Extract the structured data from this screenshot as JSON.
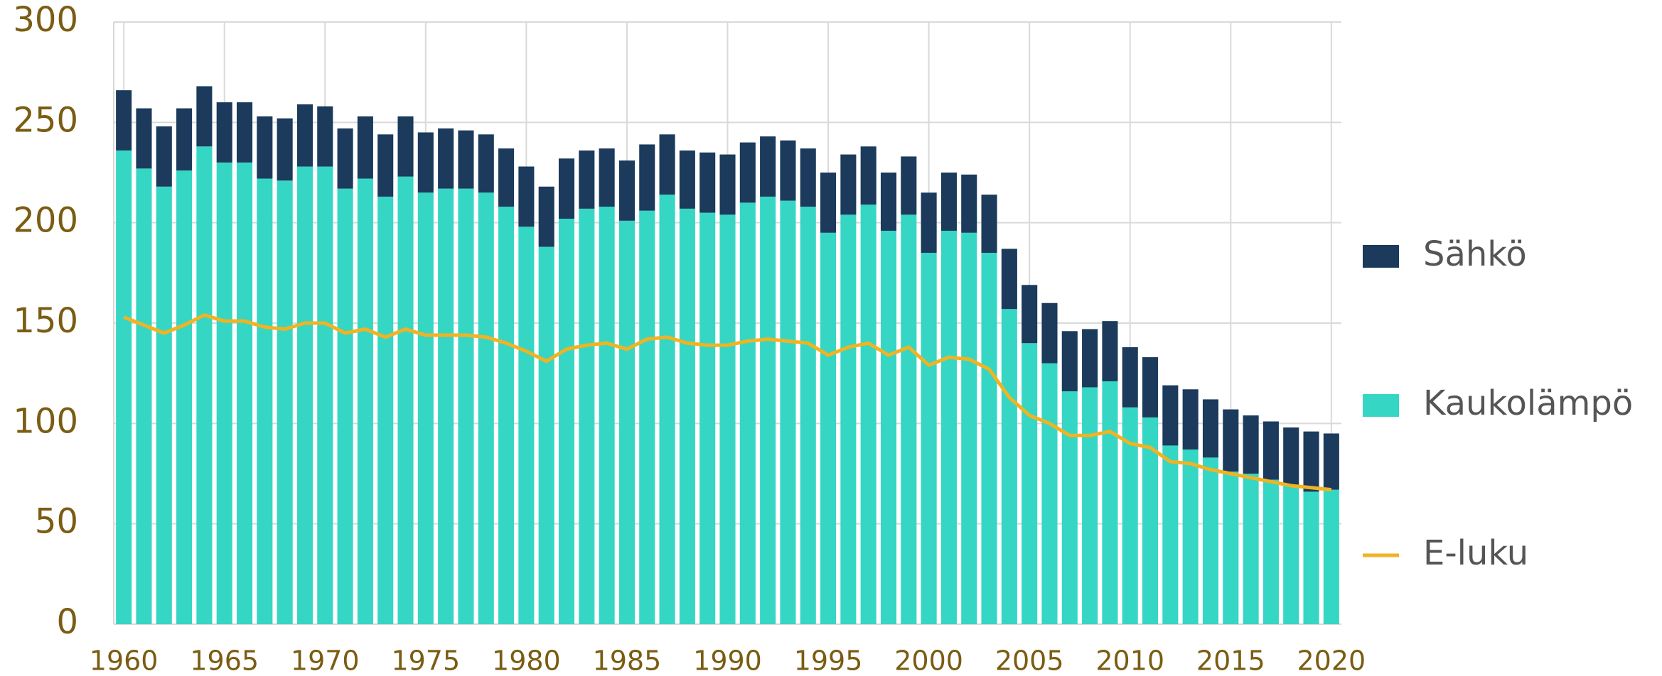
{
  "chart_data": {
    "type": "bar",
    "x": [
      1960,
      1961,
      1962,
      1963,
      1964,
      1965,
      1966,
      1967,
      1968,
      1969,
      1970,
      1971,
      1972,
      1973,
      1974,
      1975,
      1976,
      1977,
      1978,
      1979,
      1980,
      1981,
      1982,
      1983,
      1984,
      1985,
      1986,
      1987,
      1988,
      1989,
      1990,
      1991,
      1992,
      1993,
      1994,
      1995,
      1996,
      1997,
      1998,
      1999,
      2000,
      2001,
      2002,
      2003,
      2004,
      2005,
      2006,
      2007,
      2008,
      2009,
      2010,
      2011,
      2012,
      2013,
      2014,
      2015,
      2016,
      2017,
      2018,
      2019,
      2020
    ],
    "series": [
      {
        "name": "Kaukolämpö",
        "color": "#36d6c5",
        "type": "bar",
        "values": [
          236,
          227,
          218,
          226,
          238,
          230,
          230,
          222,
          221,
          228,
          228,
          217,
          222,
          213,
          223,
          215,
          217,
          217,
          215,
          208,
          198,
          188,
          202,
          207,
          208,
          201,
          206,
          214,
          207,
          205,
          204,
          210,
          213,
          211,
          208,
          195,
          204,
          209,
          196,
          204,
          185,
          196,
          195,
          185,
          157,
          140,
          130,
          116,
          118,
          121,
          108,
          103,
          89,
          87,
          83,
          76,
          75,
          72,
          69,
          66,
          67
        ]
      },
      {
        "name": "Sähkö",
        "color": "#1b3a5c",
        "type": "bar",
        "values": [
          30,
          30,
          30,
          31,
          30,
          30,
          30,
          31,
          31,
          31,
          30,
          30,
          31,
          31,
          30,
          30,
          30,
          29,
          29,
          29,
          30,
          30,
          30,
          29,
          29,
          30,
          33,
          30,
          29,
          30,
          30,
          30,
          30,
          30,
          29,
          30,
          30,
          29,
          29,
          29,
          30,
          29,
          29,
          29,
          30,
          29,
          30,
          30,
          29,
          30,
          30,
          30,
          30,
          30,
          29,
          31,
          29,
          29,
          29,
          30,
          28
        ]
      },
      {
        "name": "E-luku",
        "color": "#f0b323",
        "type": "line",
        "values": [
          153,
          149,
          145,
          149,
          154,
          151,
          151,
          148,
          147,
          150,
          150,
          145,
          147,
          143,
          147,
          144,
          144,
          144,
          143,
          140,
          136,
          131,
          137,
          139,
          140,
          137,
          142,
          143,
          140,
          139,
          139,
          141,
          142,
          141,
          140,
          134,
          138,
          140,
          134,
          138,
          129,
          133,
          132,
          127,
          113,
          104,
          100,
          94,
          94,
          96,
          90,
          88,
          81,
          80,
          77,
          75,
          73,
          71,
          69,
          68,
          67
        ]
      }
    ],
    "xlim": [
      1959.5,
      2020.5
    ],
    "xticks": [
      1960,
      1965,
      1970,
      1975,
      1980,
      1985,
      1990,
      1995,
      2000,
      2005,
      2010,
      2015,
      2020
    ],
    "ylim": [
      0,
      300
    ],
    "yticks": [
      0,
      50,
      100,
      150,
      200,
      250,
      300
    ],
    "grid": true,
    "legend": "right"
  }
}
